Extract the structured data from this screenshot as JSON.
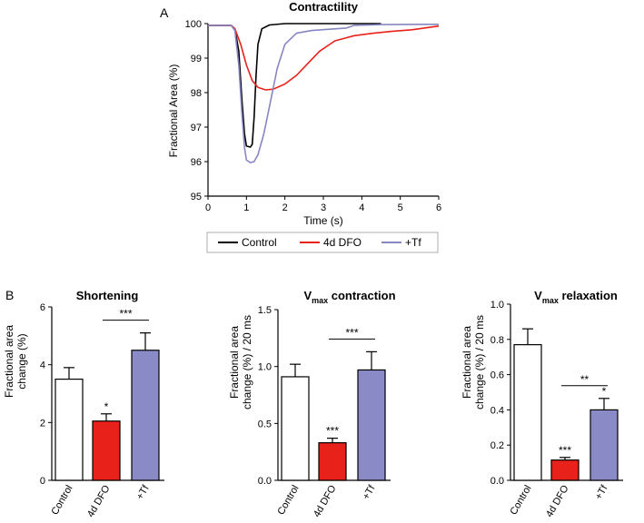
{
  "panels": {
    "a": "A",
    "b": "B"
  },
  "colors": {
    "control": "#000000",
    "dfo": "#e8221b",
    "tf": "#8686c2",
    "bar_control": "#ffffff",
    "bar_dfo": "#e8221b",
    "bar_tf": "#8a8ac6"
  },
  "chart_data": [
    {
      "id": "contractility",
      "type": "line",
      "title": "Contractility",
      "xlabel": "Time (s)",
      "ylabel": "Fractional Area (%)",
      "xlim": [
        0,
        6
      ],
      "ylim": [
        95,
        100
      ],
      "xticks": [
        "0",
        "1",
        "2",
        "3",
        "4",
        "5",
        "6"
      ],
      "yticks": [
        "95",
        "96",
        "97",
        "98",
        "99",
        "100"
      ],
      "legend": [
        "Control",
        "4d DFO",
        "+Tf"
      ],
      "series": [
        {
          "name": "Control",
          "color": "#000000",
          "points": [
            [
              0,
              99.95
            ],
            [
              0.6,
              99.95
            ],
            [
              0.7,
              99.85
            ],
            [
              0.8,
              99.2
            ],
            [
              0.88,
              97.8
            ],
            [
              0.95,
              96.8
            ],
            [
              1.0,
              96.45
            ],
            [
              1.1,
              96.42
            ],
            [
              1.15,
              96.5
            ],
            [
              1.2,
              97.3
            ],
            [
              1.25,
              98.5
            ],
            [
              1.3,
              99.4
            ],
            [
              1.4,
              99.85
            ],
            [
              1.6,
              99.96
            ],
            [
              2.0,
              100.0
            ],
            [
              3.0,
              100.0
            ],
            [
              4.5,
              100.0
            ]
          ]
        },
        {
          "name": "4d DFO",
          "color": "#e8221b",
          "points": [
            [
              0,
              99.95
            ],
            [
              0.6,
              99.95
            ],
            [
              0.7,
              99.85
            ],
            [
              0.85,
              99.4
            ],
            [
              1.0,
              98.8
            ],
            [
              1.15,
              98.35
            ],
            [
              1.3,
              98.15
            ],
            [
              1.5,
              98.08
            ],
            [
              1.7,
              98.1
            ],
            [
              2.0,
              98.25
            ],
            [
              2.3,
              98.5
            ],
            [
              2.6,
              98.85
            ],
            [
              2.9,
              99.2
            ],
            [
              3.3,
              99.5
            ],
            [
              3.8,
              99.65
            ],
            [
              4.3,
              99.72
            ],
            [
              4.8,
              99.78
            ],
            [
              5.3,
              99.82
            ],
            [
              6.0,
              99.93
            ]
          ]
        },
        {
          "name": "+Tf",
          "color": "#8686c2",
          "points": [
            [
              0,
              99.95
            ],
            [
              0.6,
              99.95
            ],
            [
              0.7,
              99.8
            ],
            [
              0.8,
              98.8
            ],
            [
              0.88,
              97.4
            ],
            [
              0.95,
              96.4
            ],
            [
              1.0,
              96.05
            ],
            [
              1.1,
              95.97
            ],
            [
              1.2,
              96.0
            ],
            [
              1.3,
              96.2
            ],
            [
              1.45,
              96.8
            ],
            [
              1.6,
              97.6
            ],
            [
              1.8,
              98.7
            ],
            [
              2.0,
              99.4
            ],
            [
              2.3,
              99.72
            ],
            [
              2.7,
              99.8
            ],
            [
              3.2,
              99.84
            ],
            [
              3.6,
              99.87
            ],
            [
              3.8,
              99.95
            ],
            [
              4.5,
              99.97
            ],
            [
              5.5,
              99.98
            ],
            [
              6.0,
              99.98
            ]
          ]
        }
      ]
    },
    {
      "id": "shortening",
      "type": "bar",
      "title": "Shortening",
      "ylabel_lines": [
        "Fractional area",
        "change (%)"
      ],
      "categories": [
        "Control",
        "4d DFO",
        "+Tf"
      ],
      "values": [
        3.5,
        2.05,
        4.5
      ],
      "errors": [
        0.4,
        0.25,
        0.6
      ],
      "ylim": [
        0,
        6
      ],
      "yticks": [
        "0",
        "2",
        "4",
        "6"
      ],
      "stars": [
        "",
        "*",
        ""
      ],
      "bracket": {
        "label": "***",
        "from": 1,
        "to": 2
      }
    },
    {
      "id": "vmax_contraction",
      "type": "bar",
      "title": "V",
      "title_sub": "max",
      "title_rest": " contraction",
      "ylabel_lines": [
        "Fractional area",
        "change (%) / 20 ms"
      ],
      "categories": [
        "Control",
        "4d DFO",
        "+Tf"
      ],
      "values": [
        0.91,
        0.33,
        0.97
      ],
      "errors": [
        0.11,
        0.04,
        0.16
      ],
      "ylim": [
        0,
        1.5
      ],
      "yticks": [
        "0.0",
        "0.5",
        "1.0",
        "1.5"
      ],
      "stars": [
        "",
        "***",
        ""
      ],
      "bracket": {
        "label": "***",
        "from": 1,
        "to": 2
      }
    },
    {
      "id": "vmax_relaxation",
      "type": "bar",
      "title": "V",
      "title_sub": "max",
      "title_rest": " relaxation",
      "ylabel_lines": [
        "Fractional area",
        "change (%) / 20 ms"
      ],
      "categories": [
        "Control",
        "4d DFO",
        "+Tf"
      ],
      "values": [
        0.77,
        0.115,
        0.4
      ],
      "errors": [
        0.09,
        0.015,
        0.065
      ],
      "ylim": [
        0,
        1.0
      ],
      "yticks": [
        "0.0",
        "0.2",
        "0.4",
        "0.6",
        "0.8",
        "1.0"
      ],
      "stars": [
        "",
        "***",
        "*"
      ],
      "bracket": {
        "label": "**",
        "from": 1,
        "to": 2
      }
    }
  ]
}
